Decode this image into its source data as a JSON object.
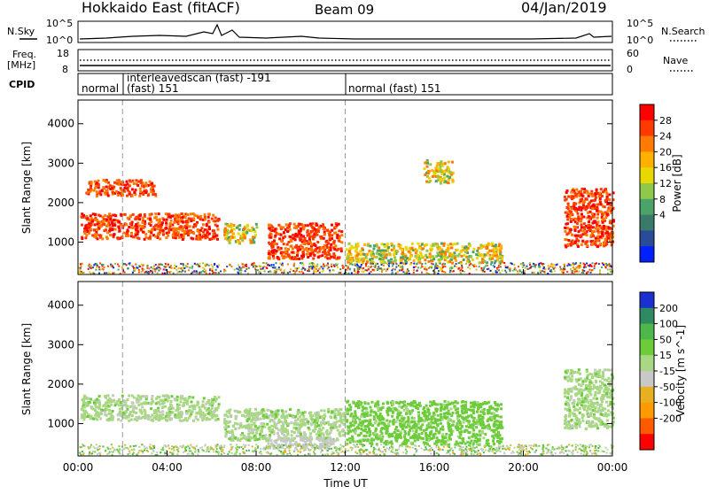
{
  "header": {
    "station": "Hokkaido East (fitACF)",
    "beam": "Beam 09",
    "date": "04/Jan/2019"
  },
  "noise_panel": {
    "left_label": "N.Sky",
    "right_label": "N.Search",
    "left_ticks": [
      "10^5",
      "10^0"
    ],
    "right_ticks": [
      "10^5",
      "10^0"
    ]
  },
  "freq_panel": {
    "left_label_line1": "Freq.",
    "left_label_line2": "[MHz]",
    "right_label": "Nave",
    "left_ticks": [
      "18",
      "8"
    ],
    "right_ticks": [
      "60",
      "0"
    ]
  },
  "cpid_panel": {
    "label": "CPID",
    "segments": [
      {
        "start_hour": 0,
        "line1": "normal",
        "line2": ""
      },
      {
        "start_hour": 2,
        "line1": "interleavedscan (fast) -191",
        "line2": "(fast) 151"
      },
      {
        "start_hour": 12,
        "line1": "",
        "line2": "normal (fast) 151"
      }
    ]
  },
  "time_axis": {
    "label": "Time UT",
    "ticks": [
      "00:00",
      "04:00",
      "08:00",
      "12:00",
      "16:00",
      "20:00",
      "00:00"
    ]
  },
  "power_colorbar": {
    "label": "Power [dB]",
    "ticks": [
      "28",
      "24",
      "20",
      "16",
      "12",
      "8",
      "4"
    ],
    "colors": [
      "#ff0000",
      "#ff3a00",
      "#ff7a00",
      "#ffb000",
      "#e8d800",
      "#8fc84a",
      "#4aa46a",
      "#3a7a6a",
      "#2a4a9a",
      "#0020ff"
    ]
  },
  "velocity_colorbar": {
    "label": "Velocity [m s^-1]",
    "ticks": [
      "200",
      "100",
      "50",
      "15",
      "-15",
      "-50",
      "-100",
      "-200"
    ],
    "colors": [
      "#1a30d0",
      "#2e8a60",
      "#4cb84a",
      "#6ccc3a",
      "#a8d884",
      "#c8c8c8",
      "#e8b020",
      "#ff9a00",
      "#ff5a00",
      "#ff0000"
    ]
  },
  "chart_data": {
    "type": "heatmap",
    "x_range_hours": [
      0,
      24
    ],
    "ylabel": "Slant Range [km]",
    "yticks": [
      1000,
      2000,
      3000,
      4000
    ],
    "ylim": [
      180,
      4600
    ],
    "xlabel": "Time UT",
    "dashed_verticals_hours": [
      2,
      12
    ],
    "power_regions": [
      {
        "t0": 0.1,
        "t1": 6.3,
        "r0": 1100,
        "r1": 1750,
        "level": "high"
      },
      {
        "t0": 0.3,
        "t1": 3.5,
        "r0": 2200,
        "r1": 2600,
        "level": "high"
      },
      {
        "t0": 6.5,
        "t1": 8.0,
        "r0": 1000,
        "r1": 1500,
        "level": "mid"
      },
      {
        "t0": 8.5,
        "t1": 11.8,
        "r0": 600,
        "r1": 1500,
        "level": "high"
      },
      {
        "t0": 12.0,
        "t1": 19.0,
        "r0": 500,
        "r1": 1000,
        "level": "mid"
      },
      {
        "t0": 15.5,
        "t1": 16.8,
        "r0": 2500,
        "r1": 3100,
        "level": "mid"
      },
      {
        "t0": 21.8,
        "t1": 24.0,
        "r0": 900,
        "r1": 2400,
        "level": "high"
      }
    ],
    "velocity_regions": [
      {
        "t0": 0.1,
        "t1": 6.3,
        "r0": 1100,
        "r1": 1750,
        "velocity": 0
      },
      {
        "t0": 6.5,
        "t1": 12.0,
        "r0": 600,
        "r1": 1400,
        "velocity": 0
      },
      {
        "t0": 12.0,
        "t1": 19.0,
        "r0": 500,
        "r1": 1600,
        "velocity": 30
      },
      {
        "t0": 8.5,
        "t1": 11.5,
        "r0": 400,
        "r1": 700,
        "velocity": -30
      },
      {
        "t0": 21.8,
        "t1": 24.0,
        "r0": 900,
        "r1": 2400,
        "velocity": 0
      }
    ]
  }
}
